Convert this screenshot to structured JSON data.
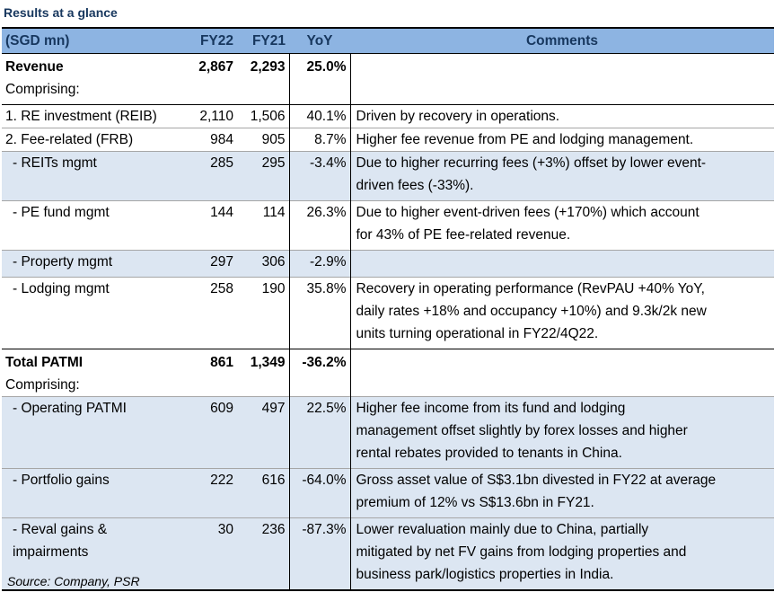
{
  "title": "Results at a glance",
  "header": {
    "label": "(SGD mn)",
    "fy22": "FY22",
    "fy21": "FY21",
    "yoy": "YoY",
    "comments": "Comments"
  },
  "rows": [
    {
      "label": "Revenue",
      "fy22": "2,867",
      "fy21": "2,293",
      "yoy": "25.0%",
      "comment": ""
    },
    {
      "label": "Comprising:"
    },
    {
      "label": "1. RE investment (REIB)",
      "fy22": "2,110",
      "fy21": "1,506",
      "yoy": "40.1%",
      "comment": "Driven by recovery in operations."
    },
    {
      "label": "2. Fee-related (FRB)",
      "fy22": "984",
      "fy21": "905",
      "yoy": "8.7%",
      "comment": "Higher fee revenue from PE and lodging management."
    },
    {
      "label": "- REITs mgmt",
      "fy22": "285",
      "fy21": "295",
      "yoy": "-3.4%",
      "comment": [
        "Due to higher recurring fees (+3%) offset by lower event-",
        "driven fees (-33%)."
      ]
    },
    {
      "label": "- PE fund mgmt",
      "fy22": "144",
      "fy21": "114",
      "yoy": "26.3%",
      "comment": [
        "Due to higher event-driven fees (+170%) which account",
        "for 43% of PE fee-related revenue."
      ]
    },
    {
      "label": "- Property mgmt",
      "fy22": "297",
      "fy21": "306",
      "yoy": "-2.9%",
      "comment": ""
    },
    {
      "label": "- Lodging mgmt",
      "fy22": "258",
      "fy21": "190",
      "yoy": "35.8%",
      "comment": [
        "Recovery in operating performance (RevPAU +40% YoY,",
        "daily rates +18% and occupancy +10%) and 9.3k/2k new",
        "units turning operational in FY22/4Q22."
      ]
    },
    {
      "label": "Total PATMI",
      "fy22": "861",
      "fy21": "1,349",
      "yoy": "-36.2%",
      "comment": ""
    },
    {
      "label": "Comprising:"
    },
    {
      "label": "- Operating PATMI",
      "fy22": "609",
      "fy21": "497",
      "yoy": "22.5%",
      "comment": [
        "Higher fee income from its fund and lodging",
        "management offset slightly by forex losses and higher",
        "rental rebates provided to tenants in China."
      ]
    },
    {
      "label": "- Portfolio gains",
      "fy22": "222",
      "fy21": "616",
      "yoy": "-64.0%",
      "comment": [
        "Gross asset value of S$3.1bn divested in FY22 at average",
        "premium of 12% vs S$13.6bn in FY21."
      ]
    },
    {
      "label": [
        "- Reval gains &",
        "impairments"
      ],
      "fy22": "30",
      "fy21": "236",
      "yoy": "-87.3%",
      "comment": [
        "Lower revaluation mainly due to China, partially",
        "mitigated by net FV gains from lodging properties and",
        "business park/logistics properties in India."
      ]
    }
  ],
  "source": "Source: Company, PSR"
}
